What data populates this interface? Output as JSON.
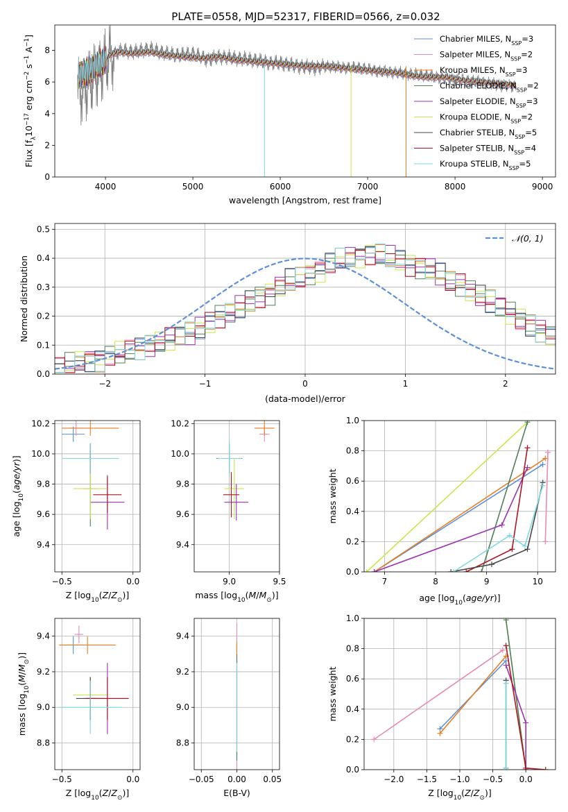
{
  "figure": {
    "title": "PLATE=0558, MJD=52317, FIBERID=0566, z=0.032"
  },
  "models": [
    {
      "name": "Chabrier MILES",
      "nssp": "3",
      "color": "#5b8fd9"
    },
    {
      "name": "Salpeter MILES",
      "nssp": "2",
      "color": "#e68ab6"
    },
    {
      "name": "Kroupa MILES",
      "nssp": "3",
      "color": "#e67e22"
    },
    {
      "name": "Chabrier ELODIE",
      "nssp": "2",
      "color": "#4f7f5a"
    },
    {
      "name": "Salpeter ELODIE",
      "nssp": "3",
      "color": "#9b30b0"
    },
    {
      "name": "Kroupa ELODIE",
      "nssp": "2",
      "color": "#c8e64a"
    },
    {
      "name": "Chabrier STELIB",
      "nssp": "5",
      "color": "#444444"
    },
    {
      "name": "Salpeter STELIB",
      "nssp": "4",
      "color": "#b0141e"
    },
    {
      "name": "Kroupa STELIB",
      "nssp": "5",
      "color": "#7fd8df"
    }
  ],
  "chart_data": [
    {
      "id": "spectrum",
      "type": "line",
      "xlabel": "wavelength [Angstrom, rest frame]",
      "ylabel_prefix": "Flux [f",
      "ylabel_mid": "10",
      "ylabel_units": " erg cm",
      "ylabel_tail": " s",
      "ylabel_end": " A",
      "xlim": [
        3420,
        9150
      ],
      "ylim": [
        0,
        9.6
      ],
      "xticks": [
        4000,
        5000,
        6000,
        7000,
        8000,
        9000
      ],
      "yticks": [
        0,
        2,
        4,
        6,
        8
      ],
      "legend_location": "top-right",
      "observed_color": "#808080",
      "observed": {
        "x": [
          3680,
          3750,
          3830,
          3900,
          3970,
          4050,
          4100,
          4200,
          4340,
          4500,
          4700,
          4860,
          5000,
          5175,
          5300,
          5500,
          5700,
          5890,
          6000,
          6200,
          6400,
          6563,
          6700,
          6900,
          7100,
          7300,
          7500,
          7700,
          7900,
          8100,
          8300,
          8500,
          8700
        ],
        "y": [
          5.3,
          5.6,
          5.9,
          6.6,
          6.9,
          7.6,
          7.8,
          8.0,
          7.9,
          8.1,
          7.8,
          7.7,
          7.8,
          7.4,
          7.6,
          7.5,
          7.4,
          7.2,
          7.2,
          7.0,
          6.9,
          7.0,
          6.9,
          6.9,
          6.7,
          6.6,
          6.5,
          6.4,
          6.2,
          6.1,
          6.0,
          5.8,
          5.7
        ]
      },
      "model": {
        "x": [
          3690,
          3780,
          3860,
          3930,
          3990,
          4050,
          4150,
          4300,
          4500,
          4700,
          4900,
          5100,
          5300,
          5500,
          5700,
          5900,
          6100,
          6300,
          6500,
          6700,
          6900,
          7100,
          7300,
          7430,
          7500,
          7700,
          7900,
          8100,
          8300,
          8500,
          8700
        ],
        "y": [
          6.4,
          6.6,
          6.9,
          7.1,
          7.3,
          7.7,
          7.9,
          7.8,
          7.9,
          7.7,
          7.6,
          7.5,
          7.6,
          7.4,
          7.3,
          7.2,
          7.1,
          7.0,
          7.0,
          6.9,
          6.8,
          6.7,
          6.6,
          6.5,
          6.4,
          6.3,
          6.3,
          6.1,
          6.0,
          5.9,
          5.8
        ]
      },
      "model_dropouts": [
        5820,
        6810,
        7440
      ]
    },
    {
      "id": "residuals",
      "type": "bar",
      "xlabel": "(data-model)/error",
      "ylabel": "Normed distribution",
      "xlim": [
        -2.5,
        2.5
      ],
      "ylim": [
        0,
        0.52
      ],
      "xticks": [
        -2,
        -1,
        0,
        1,
        2
      ],
      "yticks": [
        0.0,
        0.1,
        0.2,
        0.3,
        0.4,
        0.5
      ],
      "bin_width": 0.1,
      "reference_label": "𝒩(0, 1)",
      "reference_color": "#5b8fd9",
      "legend_location": "top-right",
      "histograms": [
        [
          0.02,
          0.03,
          0.04,
          0.05,
          0.05,
          0.06,
          0.07,
          0.08,
          0.09,
          0.1,
          0.11,
          0.12,
          0.13,
          0.14,
          0.16,
          0.18,
          0.2,
          0.21,
          0.23,
          0.25,
          0.27,
          0.28,
          0.3,
          0.32,
          0.33,
          0.35,
          0.36,
          0.38,
          0.39,
          0.4,
          0.41,
          0.42,
          0.41,
          0.4,
          0.39,
          0.38,
          0.37,
          0.36,
          0.34,
          0.32,
          0.31,
          0.29,
          0.27,
          0.25,
          0.23,
          0.21,
          0.19,
          0.17,
          0.15,
          0.13
        ]
      ]
    },
    {
      "id": "age-vs-Z",
      "type": "scatter",
      "xlabel": "Z [log",
      "ylabel": "age  [log",
      "xlim": [
        -0.55,
        0.05
      ],
      "ylim": [
        9.22,
        10.22
      ],
      "xticks": [
        -0.5,
        0.0
      ],
      "yticks": [
        9.4,
        9.6,
        9.8,
        10.0,
        10.2
      ],
      "points": [
        {
          "x": -0.42,
          "y": 10.13,
          "ex": 0.08,
          "ey": 0.05,
          "m": 0
        },
        {
          "x": -0.4,
          "y": 10.17,
          "ex": 0.05,
          "ey": 0.05,
          "m": 1
        },
        {
          "x": -0.3,
          "y": 10.17,
          "ex": 0.2,
          "ey": 0.05,
          "m": 2
        },
        {
          "x": -0.3,
          "y": 9.77,
          "ex": 0.05,
          "ey": 0.25,
          "m": 3
        },
        {
          "x": -0.18,
          "y": 9.68,
          "ex": 0.12,
          "ey": 0.18,
          "m": 4
        },
        {
          "x": -0.3,
          "y": 9.77,
          "ex": 0.12,
          "ey": 0.2,
          "m": 5
        },
        {
          "x": -0.3,
          "y": 9.97,
          "ex": 0.08,
          "ey": 0.1,
          "m": 6
        },
        {
          "x": -0.18,
          "y": 9.73,
          "ex": 0.1,
          "ey": 0.12,
          "m": 7
        },
        {
          "x": -0.3,
          "y": 9.97,
          "ex": 0.2,
          "ey": 0.1,
          "m": 8
        }
      ]
    },
    {
      "id": "age-vs-mass",
      "type": "scatter",
      "xlabel": "mass [log",
      "ylabel": "",
      "xlim": [
        8.65,
        9.5
      ],
      "ylim": [
        9.22,
        10.22
      ],
      "xticks": [
        9.0,
        9.5
      ],
      "yticks": [
        9.4,
        9.6,
        9.8,
        10.0,
        10.2
      ],
      "points": [
        {
          "x": 9.35,
          "y": 10.13,
          "ex": 0.05,
          "ey": 0.05,
          "m": 1
        },
        {
          "x": 9.35,
          "y": 10.17,
          "ex": 0.1,
          "ey": 0.05,
          "m": 2
        },
        {
          "x": 9.05,
          "y": 9.77,
          "ex": 0.1,
          "ey": 0.2,
          "m": 5
        },
        {
          "x": 9.07,
          "y": 9.68,
          "ex": 0.12,
          "ey": 0.12,
          "m": 4
        },
        {
          "x": 9.0,
          "y": 9.97,
          "ex": 0.13,
          "ey": 0.1,
          "m": 3
        },
        {
          "x": 9.02,
          "y": 9.73,
          "ex": 0.08,
          "ey": 0.15,
          "m": 7
        },
        {
          "x": 9.0,
          "y": 9.97,
          "ex": 0.12,
          "ey": 0.12,
          "m": 8
        }
      ]
    },
    {
      "id": "weights-vs-age",
      "type": "line",
      "xlabel": "age  [log",
      "ylabel": "mass weight",
      "xlim": [
        6.6,
        10.35
      ],
      "ylim": [
        0.0,
        1.0
      ],
      "xticks": [
        7,
        8,
        9,
        10
      ],
      "yticks": [
        0.0,
        0.2,
        0.4,
        0.6,
        0.8,
        1.0
      ],
      "lines": [
        {
          "m": 0,
          "x": [
            6.8,
            10.1
          ],
          "y": [
            0.0,
            0.71
          ]
        },
        {
          "m": 2,
          "x": [
            6.8,
            10.15
          ],
          "y": [
            0.0,
            0.75
          ]
        },
        {
          "m": 5,
          "x": [
            6.65,
            9.8
          ],
          "y": [
            0.0,
            0.99
          ]
        },
        {
          "m": 3,
          "x": [
            8.9,
            9.8
          ],
          "y": [
            0.0,
            0.99
          ]
        },
        {
          "m": 4,
          "x": [
            6.8,
            9.3,
            9.8
          ],
          "y": [
            0.0,
            0.31,
            0.69
          ]
        },
        {
          "m": 7,
          "x": [
            8.6,
            9.5,
            9.8
          ],
          "y": [
            0.0,
            0.15,
            0.82
          ]
        },
        {
          "m": 6,
          "x": [
            8.3,
            9.1,
            9.8,
            10.1
          ],
          "y": [
            0.0,
            0.05,
            0.15,
            0.59
          ]
        },
        {
          "m": 8,
          "x": [
            8.35,
            9.45,
            9.75,
            10.1
          ],
          "y": [
            0.0,
            0.24,
            0.17,
            0.57
          ]
        },
        {
          "m": 1,
          "x": [
            10.15,
            10.2
          ],
          "y": [
            0.2,
            0.79
          ]
        }
      ]
    },
    {
      "id": "mass-vs-Z",
      "type": "scatter",
      "xlabel": "Z [log",
      "ylabel": "mass [log",
      "xlim": [
        -0.55,
        0.05
      ],
      "ylim": [
        8.65,
        9.5
      ],
      "xticks": [
        -0.5,
        0.0
      ],
      "yticks": [
        8.8,
        9.0,
        9.2,
        9.4
      ],
      "points": [
        {
          "x": -0.42,
          "y": 9.35,
          "ex": 0.08,
          "ey": 0.05,
          "m": 0
        },
        {
          "x": -0.38,
          "y": 9.41,
          "ex": 0.03,
          "ey": 0.05,
          "m": 1
        },
        {
          "x": -0.32,
          "y": 9.35,
          "ex": 0.2,
          "ey": 0.05,
          "m": 2
        },
        {
          "x": -0.3,
          "y": 9.05,
          "ex": 0.05,
          "ey": 0.12,
          "m": 3
        },
        {
          "x": -0.18,
          "y": 9.05,
          "ex": 0.15,
          "ey": 0.2,
          "m": 4
        },
        {
          "x": -0.3,
          "y": 9.07,
          "ex": 0.12,
          "ey": 0.1,
          "m": 5
        },
        {
          "x": -0.3,
          "y": 9.05,
          "ex": 0.1,
          "ey": 0.12,
          "m": 6
        },
        {
          "x": -0.18,
          "y": 9.05,
          "ex": 0.15,
          "ey": 0.12,
          "m": 7
        },
        {
          "x": -0.3,
          "y": 9.0,
          "ex": 0.22,
          "ey": 0.15,
          "m": 8
        }
      ]
    },
    {
      "id": "mass-vs-ebv",
      "type": "scatter",
      "xlabel": "E(B-V)",
      "ylabel": "",
      "xlim": [
        -0.06,
        0.06
      ],
      "ylim": [
        8.65,
        9.5
      ],
      "xticks": [
        -0.05,
        0.0,
        0.05
      ],
      "yticks": [
        8.8,
        9.0,
        9.2,
        9.4
      ],
      "points": [
        {
          "x": 0.0,
          "y": 9.05,
          "ex": 0.0,
          "ey": 0.42,
          "m": 1
        },
        {
          "x": 0.0,
          "y": 9.05,
          "ex": 0.0,
          "ey": 0.32,
          "m": 2
        },
        {
          "x": 0.0,
          "y": 9.0,
          "ex": 0.0,
          "ey": 0.3,
          "m": 3
        },
        {
          "x": 0.0,
          "y": 9.0,
          "ex": 0.0,
          "ey": 0.21,
          "m": 4
        },
        {
          "x": 0.0,
          "y": 9.0,
          "ex": 0.0,
          "ey": 0.25,
          "m": 8
        }
      ]
    },
    {
      "id": "weights-vs-Z",
      "type": "line",
      "xlabel": "Z [log",
      "ylabel": "mass weight",
      "xlim": [
        -2.45,
        0.45
      ],
      "ylim": [
        0.0,
        1.0
      ],
      "xticks": [
        -2.0,
        -1.5,
        -1.0,
        -0.5,
        0.0
      ],
      "yticks": [
        0.0,
        0.2,
        0.4,
        0.6,
        0.8,
        1.0
      ],
      "lines": [
        {
          "m": 1,
          "x": [
            -2.3,
            -0.35
          ],
          "y": [
            0.2,
            0.79
          ]
        },
        {
          "m": 0,
          "x": [
            -1.3,
            -0.3
          ],
          "y": [
            0.27,
            0.72
          ]
        },
        {
          "m": 2,
          "x": [
            -1.3,
            -0.3
          ],
          "y": [
            0.24,
            0.75
          ]
        },
        {
          "m": 5,
          "x": [
            -0.3,
            0.0
          ],
          "y": [
            0.99,
            0.0
          ]
        },
        {
          "m": 3,
          "x": [
            -0.3,
            0.0
          ],
          "y": [
            0.99,
            0.0
          ]
        },
        {
          "m": 4,
          "x": [
            -0.3,
            0.0,
            0.0
          ],
          "y": [
            0.69,
            0.31,
            0.0
          ]
        },
        {
          "m": 7,
          "x": [
            -0.3,
            0.0,
            0.3
          ],
          "y": [
            0.82,
            0.01,
            0.0
          ]
        },
        {
          "m": 6,
          "x": [
            -0.3,
            -0.3
          ],
          "y": [
            0.59,
            0.01
          ]
        },
        {
          "m": 8,
          "x": [
            -0.3,
            -0.3
          ],
          "y": [
            0.57,
            0.01
          ]
        }
      ]
    }
  ]
}
